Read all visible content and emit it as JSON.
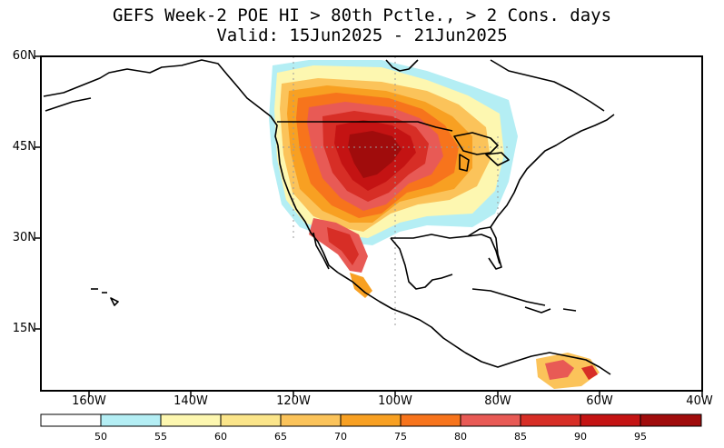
{
  "title": {
    "line1": "GEFS Week-2 POE HI > 80th Pctle., > 2 Cons. days",
    "line2": "Valid: 15Jun2025 - 21Jun2025"
  },
  "lat_labels": [
    "60N",
    "45N",
    "30N",
    "15N"
  ],
  "lon_labels": [
    "160W",
    "140W",
    "120W",
    "100W",
    "80W",
    "60W",
    "40W"
  ],
  "colorbar": {
    "labels": [
      "50",
      "55",
      "60",
      "65",
      "70",
      "75",
      "80",
      "85",
      "90",
      "95"
    ],
    "colors": [
      "#ffffff",
      "#b4eef4",
      "#fdf7b0",
      "#fbe58a",
      "#fbc35a",
      "#f8a022",
      "#f7741c",
      "#e85a55",
      "#d72e26",
      "#c41313",
      "#a00c0c"
    ]
  },
  "colors": {
    "coast": "#000000",
    "grid": "#9a9a9a"
  }
}
